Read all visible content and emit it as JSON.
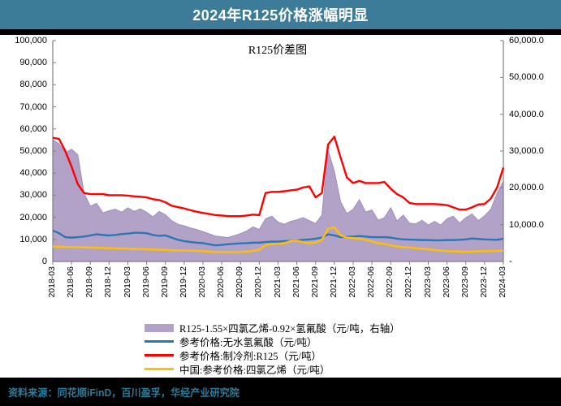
{
  "header": {
    "title": "2024年R125价格涨幅明显",
    "bg": "#3d7c99",
    "color": "#ffffff"
  },
  "footer": {
    "source": "资料来源：同花顺iFinD，百川盈孚，华经产业研究院",
    "color": "#2c7a99"
  },
  "chart_data": {
    "type": "combo",
    "title": "R125价差图",
    "x": [
      "2018-03",
      "2018-04",
      "2018-05",
      "2018-06",
      "2018-07",
      "2018-08",
      "2018-09",
      "2018-10",
      "2018-11",
      "2018-12",
      "2019-01",
      "2019-02",
      "2019-03",
      "2019-04",
      "2019-05",
      "2019-06",
      "2019-07",
      "2019-08",
      "2019-09",
      "2019-10",
      "2019-11",
      "2019-12",
      "2020-01",
      "2020-02",
      "2020-03",
      "2020-04",
      "2020-05",
      "2020-06",
      "2020-07",
      "2020-08",
      "2020-09",
      "2020-10",
      "2020-11",
      "2020-12",
      "2021-01",
      "2021-02",
      "2021-03",
      "2021-04",
      "2021-05",
      "2021-06",
      "2021-07",
      "2021-08",
      "2021-09",
      "2021-10",
      "2021-11",
      "2021-12",
      "2022-01",
      "2022-02",
      "2022-03",
      "2022-04",
      "2022-05",
      "2022-06",
      "2022-07",
      "2022-08",
      "2022-09",
      "2022-10",
      "2022-11",
      "2022-12",
      "2023-01",
      "2023-02",
      "2023-03",
      "2023-04",
      "2023-05",
      "2023-06",
      "2023-07",
      "2023-08",
      "2023-09",
      "2023-10",
      "2023-11",
      "2023-12",
      "2024-01",
      "2024-02",
      "2024-03"
    ],
    "x_tick_labels": [
      "2018-03",
      "2018-06",
      "2018-09",
      "2018-12",
      "2019-03",
      "2019-06",
      "2019-09",
      "2019-12",
      "2020-03",
      "2020-06",
      "2020-09",
      "2020-12",
      "2021-03",
      "2021-06",
      "2021-09",
      "2021-12",
      "2022-03",
      "2022-06",
      "2022-09",
      "2022-12",
      "2023-03",
      "2023-06",
      "2023-09",
      "2023-12",
      "2024-03"
    ],
    "left_axis": {
      "min": 0,
      "max": 100000,
      "labels_top_to_bottom": [
        "100,000",
        "90,000",
        "80,000",
        "70,000",
        "60,000",
        "50,000",
        "40,000",
        "30,000",
        "20,000",
        "10,000",
        "0"
      ]
    },
    "right_axis": {
      "min": 0,
      "max": 60000,
      "labels_top_to_bottom": [
        "60,000.0",
        "50,000.0",
        "40,000.0",
        "30,000.0",
        "20,000.0",
        "10,000.0",
        "-"
      ]
    },
    "series": [
      {
        "name": "R125-1.55×四氯乙烯-0.92×氢氟酸（元/吨，右轴）",
        "type": "area",
        "axis": "right",
        "color": "#b3a2c7",
        "edge": "#9e8fbe",
        "values": [
          33000,
          32000,
          29500,
          30500,
          29000,
          18500,
          15000,
          15800,
          13200,
          13800,
          14200,
          13400,
          14600,
          13600,
          14300,
          13400,
          12100,
          13600,
          12700,
          11100,
          10100,
          9700,
          9100,
          8700,
          8100,
          7500,
          6900,
          6700,
          6500,
          7000,
          7600,
          8300,
          9400,
          8700,
          11600,
          12300,
          10700,
          10100,
          10900,
          11300,
          11900,
          11100,
          10300,
          12600,
          30200,
          24500,
          16200,
          13000,
          14200,
          16800,
          13400,
          14000,
          11200,
          11900,
          14600,
          11000,
          12600,
          10400,
          10200,
          11200,
          9900,
          10900,
          9900,
          11600,
          12300,
          10400,
          11900,
          12900,
          11100,
          12400,
          14200,
          18500,
          21800
        ]
      },
      {
        "name": "参考价格:无水氢氟酸（元/吨）",
        "type": "line",
        "axis": "left",
        "color": "#2e75b6",
        "values": [
          14000,
          12800,
          11000,
          10800,
          11000,
          11300,
          11800,
          12300,
          12000,
          11800,
          12000,
          12400,
          12600,
          13000,
          13000,
          12800,
          12000,
          11600,
          11800,
          10800,
          9800,
          9200,
          8800,
          8500,
          8300,
          7800,
          7300,
          7500,
          7800,
          8000,
          8200,
          8300,
          8500,
          8500,
          8800,
          9000,
          9000,
          9200,
          9300,
          9500,
          9800,
          10000,
          10300,
          10800,
          12300,
          11800,
          11000,
          11200,
          11300,
          11500,
          11300,
          11000,
          11000,
          11000,
          10800,
          10300,
          10000,
          9900,
          9800,
          9700,
          9700,
          9600,
          9600,
          9700,
          9700,
          9800,
          10000,
          10400,
          10200,
          10000,
          9900,
          9800,
          10300
        ]
      },
      {
        "name": "参考价格:制冷剂:R125（元/吨）",
        "type": "line",
        "axis": "left",
        "color": "#ff0000",
        "values": [
          56000,
          55500,
          50000,
          43000,
          35000,
          31000,
          30500,
          30500,
          30500,
          30000,
          30000,
          30000,
          29800,
          29500,
          29300,
          29000,
          28200,
          27800,
          26800,
          25200,
          24600,
          24000,
          23200,
          22500,
          22000,
          21500,
          21000,
          20800,
          20500,
          20500,
          20500,
          20800,
          21200,
          21000,
          31000,
          31500,
          31500,
          31800,
          32200,
          32500,
          33500,
          34000,
          29000,
          31000,
          53000,
          56500,
          47000,
          38000,
          35500,
          36500,
          35500,
          35500,
          35500,
          36000,
          33000,
          30500,
          29000,
          26500,
          26000,
          26000,
          26000,
          26000,
          25800,
          25500,
          24500,
          23500,
          23500,
          24500,
          25800,
          26000,
          28500,
          33500,
          42500
        ]
      },
      {
        "name": "中国:参考价格:四氯乙烯（元/吨）",
        "type": "line",
        "axis": "left",
        "color": "#ffc000",
        "values": [
          6800,
          6700,
          6600,
          6500,
          6400,
          6400,
          6300,
          6200,
          6100,
          6000,
          5900,
          5900,
          5800,
          5700,
          5600,
          5500,
          5400,
          5300,
          5200,
          5100,
          5000,
          5000,
          4900,
          4800,
          4700,
          4500,
          4300,
          4300,
          4200,
          4200,
          4300,
          4500,
          4800,
          5400,
          7400,
          7800,
          8000,
          8300,
          9200,
          9400,
          8700,
          8300,
          8600,
          9800,
          14800,
          15500,
          11800,
          10800,
          10600,
          10300,
          9800,
          9000,
          8300,
          8000,
          7300,
          6800,
          6500,
          6300,
          6000,
          5800,
          5500,
          5200,
          4900,
          4700,
          4600,
          4500,
          4400,
          4500,
          4600,
          4700,
          4700,
          4800,
          4900
        ]
      }
    ],
    "legend_position": "bottom",
    "grid": false
  }
}
